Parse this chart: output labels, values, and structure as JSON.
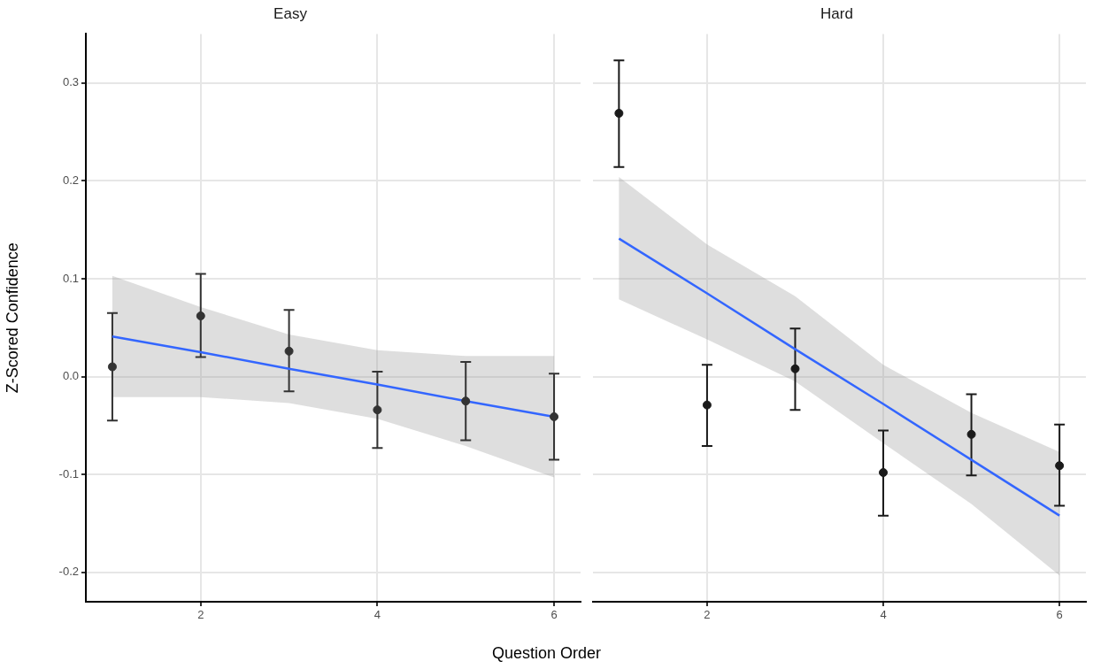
{
  "chart_data": [
    {
      "type": "scatter",
      "title": "Easy",
      "xlabel": "Question Order",
      "ylabel": "Z-Scored Confidence",
      "x": [
        1,
        2,
        3,
        4,
        5,
        6
      ],
      "xlim": [
        0.7,
        6.3
      ],
      "xticks": [
        2,
        4,
        6
      ],
      "ylim": [
        -0.23,
        0.35
      ],
      "yticks": [
        -0.2,
        -0.1,
        {
          "value": 0,
          "label": "0.0"
        },
        0.1,
        0.2,
        0.3
      ],
      "grid": true,
      "series": [
        {
          "marker": "circle",
          "color": "#333333",
          "values": [
            0.01,
            0.062,
            0.026,
            -0.034,
            -0.025,
            -0.041
          ],
          "errors": [
            [
              -0.045,
              0.065
            ],
            [
              0.02,
              0.105
            ],
            [
              -0.015,
              0.068
            ],
            [
              -0.073,
              0.005
            ],
            [
              -0.065,
              0.015
            ],
            [
              -0.085,
              0.003
            ]
          ]
        },
        {
          "type": "line",
          "marker": "none",
          "color": "#3366ff",
          "values": [
            0.041,
            0.025,
            0.008,
            -0.008,
            -0.025,
            -0.041
          ],
          "lower": [
            -0.021,
            -0.021,
            -0.027,
            -0.043,
            -0.071,
            -0.103
          ],
          "upper": [
            0.103,
            0.071,
            0.043,
            0.027,
            0.021,
            0.021
          ]
        }
      ]
    },
    {
      "type": "scatter",
      "title": "Hard",
      "x": [
        1,
        2,
        3,
        4,
        5,
        6
      ],
      "xlim": [
        0.7,
        6.3
      ],
      "xticks": [
        2,
        4,
        6
      ],
      "ylim": [
        -0.23,
        0.35
      ],
      "yticks": [
        -0.2,
        -0.1,
        0,
        0.1,
        0.2,
        0.3
      ],
      "tick_labels": "x",
      "grid": true,
      "series": [
        {
          "marker": "circle",
          "color": "#1a1a1a",
          "values": [
            0.269,
            -0.029,
            0.008,
            -0.098,
            -0.059,
            -0.091
          ],
          "errors": [
            [
              0.214,
              0.323
            ],
            [
              -0.071,
              0.012
            ],
            [
              -0.034,
              0.049
            ],
            [
              -0.142,
              -0.055
            ],
            [
              -0.101,
              -0.018
            ],
            [
              -0.132,
              -0.049
            ]
          ]
        },
        {
          "type": "line",
          "marker": "none",
          "color": "#3366ff",
          "values": [
            0.141,
            0.085,
            0.028,
            -0.028,
            -0.085,
            -0.142
          ],
          "lower": [
            0.079,
            0.038,
            -0.005,
            -0.068,
            -0.13,
            -0.203
          ],
          "upper": [
            0.204,
            0.135,
            0.082,
            0.012,
            -0.037,
            -0.077
          ]
        }
      ]
    }
  ]
}
